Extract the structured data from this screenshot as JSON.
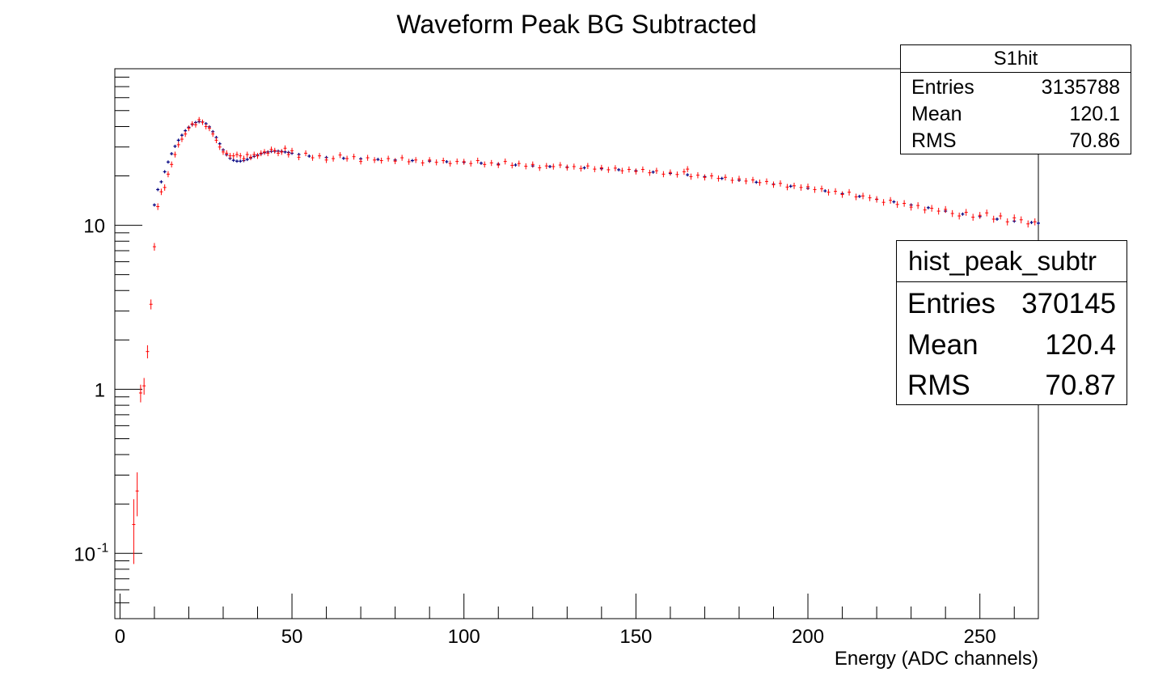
{
  "chart_data": {
    "type": "scatter",
    "title": "Waveform Peak BG Subtracted",
    "xlabel": "Energy (ADC channels)",
    "ylabel": "",
    "x_scale": "linear",
    "y_scale": "log",
    "xlim": [
      -1.5,
      267
    ],
    "ylim": [
      0.04,
      90
    ],
    "x_ticks": [
      0,
      50,
      100,
      150,
      200,
      250
    ],
    "y_ticks": [
      {
        "value": 0.1,
        "base": "10",
        "exp": "-1"
      },
      {
        "value": 1,
        "base": "1",
        "exp": ""
      },
      {
        "value": 10,
        "base": "10",
        "exp": ""
      }
    ],
    "grid": false,
    "series": [
      {
        "name": "S1hit",
        "color": "#000080",
        "style": "markers",
        "points": [
          [
            10,
            13.3
          ],
          [
            11,
            16.5
          ],
          [
            12,
            18.4
          ],
          [
            13,
            21.2
          ],
          [
            14,
            24.3
          ],
          [
            15,
            27.3
          ],
          [
            16,
            30.3
          ],
          [
            17,
            33.0
          ],
          [
            18,
            35.4
          ],
          [
            19,
            37.7
          ],
          [
            20,
            39.6
          ],
          [
            21,
            41.2
          ],
          [
            22,
            42.3
          ],
          [
            23,
            42.8
          ],
          [
            24,
            42.6
          ],
          [
            25,
            41.6
          ],
          [
            26,
            39.8
          ],
          [
            27,
            37.2
          ],
          [
            28,
            34.3
          ],
          [
            29,
            31.4
          ],
          [
            30,
            28.8
          ],
          [
            31,
            26.9
          ],
          [
            32,
            25.6
          ],
          [
            33,
            24.9
          ],
          [
            34,
            24.6
          ],
          [
            35,
            24.6
          ],
          [
            36,
            24.8
          ],
          [
            37,
            25.2
          ],
          [
            38,
            25.7
          ],
          [
            39,
            26.3
          ],
          [
            40,
            26.8
          ],
          [
            41,
            27.3
          ],
          [
            42,
            27.7
          ],
          [
            43,
            28.0
          ],
          [
            44,
            28.2
          ],
          [
            45,
            28.3
          ],
          [
            46,
            28.3
          ],
          [
            47,
            28.2
          ],
          [
            48,
            28.0
          ],
          [
            49,
            27.8
          ],
          [
            50,
            27.5
          ],
          [
            52,
            27.0
          ],
          [
            55,
            26.4
          ],
          [
            60,
            25.9
          ],
          [
            65,
            25.6
          ],
          [
            70,
            25.4
          ],
          [
            75,
            25.2
          ],
          [
            80,
            25.0
          ],
          [
            85,
            24.8
          ],
          [
            90,
            24.6
          ],
          [
            95,
            24.4
          ],
          [
            100,
            24.2
          ],
          [
            105,
            23.9
          ],
          [
            110,
            23.6
          ],
          [
            115,
            23.3
          ],
          [
            120,
            23.0
          ],
          [
            125,
            22.8
          ],
          [
            130,
            22.6
          ],
          [
            135,
            22.4
          ],
          [
            140,
            22.1
          ],
          [
            145,
            21.8
          ],
          [
            150,
            21.5
          ],
          [
            155,
            21.1
          ],
          [
            160,
            20.7
          ],
          [
            165,
            20.3
          ],
          [
            170,
            19.8
          ],
          [
            175,
            19.3
          ],
          [
            180,
            18.8
          ],
          [
            185,
            18.3
          ],
          [
            190,
            17.8
          ],
          [
            195,
            17.3
          ],
          [
            200,
            16.8
          ],
          [
            205,
            16.2
          ],
          [
            210,
            15.6
          ],
          [
            215,
            15.0
          ],
          [
            220,
            14.4
          ],
          [
            225,
            13.9
          ],
          [
            230,
            13.3
          ],
          [
            235,
            12.8
          ],
          [
            240,
            12.2
          ],
          [
            245,
            11.7
          ],
          [
            250,
            11.3
          ],
          [
            255,
            10.9
          ],
          [
            260,
            10.6
          ],
          [
            265,
            10.4
          ],
          [
            267,
            10.3
          ]
        ]
      },
      {
        "name": "hist_peak_subtr",
        "color": "#ff0000",
        "style": "error-bars",
        "points": [
          [
            4,
            0.15
          ],
          [
            5,
            0.24
          ],
          [
            6,
            0.95
          ],
          [
            7,
            1.05
          ],
          [
            8,
            1.7
          ],
          [
            9,
            3.3
          ],
          [
            10,
            7.4
          ],
          [
            11,
            13.0
          ],
          [
            12,
            16.0
          ],
          [
            13,
            17.0
          ],
          [
            14,
            20.5
          ],
          [
            15,
            23.5
          ],
          [
            16,
            27.0
          ],
          [
            17,
            31.0
          ],
          [
            18,
            33.5
          ],
          [
            19,
            36.0
          ],
          [
            20,
            39.0
          ],
          [
            21,
            41.5
          ],
          [
            22,
            41.0
          ],
          [
            23,
            44.0
          ],
          [
            24,
            42.5
          ],
          [
            25,
            40.0
          ],
          [
            26,
            39.0
          ],
          [
            27,
            36.0
          ],
          [
            28,
            33.0
          ],
          [
            29,
            30.0
          ],
          [
            30,
            28.0
          ],
          [
            31,
            27.5
          ],
          [
            32,
            26.5
          ],
          [
            33,
            26.5
          ],
          [
            34,
            27.0
          ],
          [
            35,
            26.5
          ],
          [
            36,
            25.5
          ],
          [
            37,
            27.0
          ],
          [
            38,
            26.0
          ],
          [
            39,
            27.0
          ],
          [
            40,
            26.5
          ],
          [
            41,
            27.5
          ],
          [
            42,
            28.0
          ],
          [
            43,
            27.5
          ],
          [
            44,
            29.0
          ],
          [
            45,
            28.5
          ],
          [
            46,
            27.5
          ],
          [
            47,
            28.0
          ],
          [
            48,
            29.5
          ],
          [
            49,
            27.0
          ],
          [
            50,
            28.5
          ],
          [
            52,
            26.0
          ],
          [
            54,
            27.5
          ],
          [
            56,
            25.8
          ],
          [
            58,
            26.5
          ],
          [
            60,
            25.0
          ],
          [
            62,
            25.5
          ],
          [
            64,
            26.8
          ],
          [
            66,
            25.5
          ],
          [
            68,
            26.2
          ],
          [
            70,
            24.5
          ],
          [
            72,
            25.8
          ],
          [
            74,
            25.0
          ],
          [
            76,
            24.8
          ],
          [
            78,
            25.5
          ],
          [
            80,
            24.6
          ],
          [
            82,
            25.8
          ],
          [
            84,
            24.4
          ],
          [
            86,
            25.0
          ],
          [
            88,
            24.0
          ],
          [
            90,
            25.0
          ],
          [
            92,
            24.2
          ],
          [
            94,
            24.8
          ],
          [
            96,
            23.8
          ],
          [
            98,
            24.5
          ],
          [
            100,
            24.4
          ],
          [
            102,
            23.8
          ],
          [
            104,
            24.8
          ],
          [
            106,
            23.5
          ],
          [
            108,
            24.0
          ],
          [
            110,
            23.3
          ],
          [
            112,
            24.5
          ],
          [
            114,
            23.2
          ],
          [
            116,
            23.8
          ],
          [
            118,
            22.9
          ],
          [
            120,
            23.5
          ],
          [
            122,
            22.4
          ],
          [
            124,
            23.0
          ],
          [
            126,
            22.8
          ],
          [
            128,
            23.3
          ],
          [
            130,
            22.5
          ],
          [
            132,
            22.8
          ],
          [
            134,
            22.2
          ],
          [
            136,
            23.0
          ],
          [
            138,
            22.0
          ],
          [
            140,
            22.4
          ],
          [
            142,
            21.8
          ],
          [
            144,
            22.3
          ],
          [
            146,
            21.5
          ],
          [
            148,
            21.9
          ],
          [
            150,
            21.3
          ],
          [
            152,
            21.9
          ],
          [
            154,
            20.9
          ],
          [
            156,
            21.5
          ],
          [
            158,
            20.5
          ],
          [
            160,
            21.0
          ],
          [
            162,
            20.4
          ],
          [
            164,
            21.2
          ],
          [
            165,
            22.0
          ],
          [
            166,
            19.8
          ],
          [
            168,
            20.2
          ],
          [
            170,
            19.6
          ],
          [
            172,
            20.0
          ],
          [
            174,
            19.3
          ],
          [
            176,
            19.6
          ],
          [
            178,
            18.8
          ],
          [
            180,
            19.2
          ],
          [
            182,
            18.6
          ],
          [
            184,
            18.9
          ],
          [
            186,
            18.2
          ],
          [
            188,
            18.5
          ],
          [
            190,
            17.7
          ],
          [
            192,
            18.0
          ],
          [
            194,
            17.1
          ],
          [
            196,
            17.4
          ],
          [
            198,
            17.0
          ],
          [
            200,
            17.2
          ],
          [
            202,
            16.5
          ],
          [
            204,
            16.7
          ],
          [
            206,
            15.9
          ],
          [
            208,
            16.1
          ],
          [
            210,
            15.4
          ],
          [
            212,
            15.9
          ],
          [
            214,
            14.9
          ],
          [
            216,
            15.1
          ],
          [
            218,
            14.7
          ],
          [
            220,
            14.4
          ],
          [
            222,
            13.8
          ],
          [
            224,
            14.2
          ],
          [
            226,
            13.4
          ],
          [
            228,
            13.6
          ],
          [
            230,
            12.9
          ],
          [
            232,
            13.2
          ],
          [
            234,
            12.4
          ],
          [
            236,
            12.7
          ],
          [
            238,
            12.2
          ],
          [
            240,
            12.5
          ],
          [
            242,
            11.8
          ],
          [
            244,
            11.4
          ],
          [
            246,
            12.0
          ],
          [
            248,
            11.2
          ],
          [
            250,
            11.5
          ],
          [
            252,
            11.9
          ],
          [
            254,
            10.9
          ],
          [
            256,
            11.4
          ],
          [
            258,
            10.5
          ],
          [
            260,
            11.1
          ],
          [
            262,
            10.8
          ],
          [
            264,
            10.2
          ],
          [
            266,
            10.5
          ]
        ]
      }
    ]
  },
  "stat_boxes": [
    {
      "id": "s1hit",
      "title": "S1hit",
      "rows": [
        {
          "label": "Entries",
          "value": "3135788"
        },
        {
          "label": "Mean",
          "value": "120.1"
        },
        {
          "label": "RMS",
          "value": "70.86"
        }
      ]
    },
    {
      "id": "peak",
      "title": "hist_peak_subtr",
      "rows": [
        {
          "label": "Entries",
          "value": "370145"
        },
        {
          "label": "Mean",
          "value": "120.4"
        },
        {
          "label": "RMS",
          "value": "70.87"
        }
      ]
    }
  ]
}
